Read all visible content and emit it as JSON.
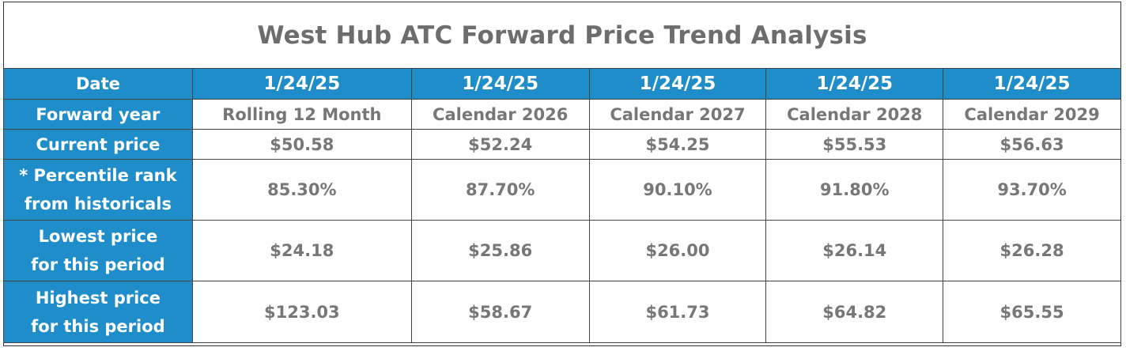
{
  "title": "West Hub ATC Forward Price Trend Analysis",
  "row_labels": {
    "date": "Date",
    "forward_year": "Forward year",
    "current_price": "Current price",
    "percentile_line1": "* Percentile rank",
    "percentile_line2": "from historicals",
    "lowest_line1": "Lowest price",
    "lowest_line2": "for this period",
    "highest_line1": "Highest price",
    "highest_line2": "for this period"
  },
  "columns": [
    {
      "date": "1/24/25",
      "forward_year": "Rolling 12 Month",
      "current_price": "$50.58",
      "percentile_rank": "85.30%",
      "lowest_price": "$24.18",
      "highest_price": "$123.03"
    },
    {
      "date": "1/24/25",
      "forward_year": "Calendar 2026",
      "current_price": "$52.24",
      "percentile_rank": "87.70%",
      "lowest_price": "$25.86",
      "highest_price": "$58.67"
    },
    {
      "date": "1/24/25",
      "forward_year": "Calendar 2027",
      "current_price": "$54.25",
      "percentile_rank": "90.10%",
      "lowest_price": "$26.00",
      "highest_price": "$61.73"
    },
    {
      "date": "1/24/25",
      "forward_year": "Calendar 2028",
      "current_price": "$55.53",
      "percentile_rank": "91.80%",
      "lowest_price": "$26.14",
      "highest_price": "$64.82"
    },
    {
      "date": "1/24/25",
      "forward_year": "Calendar 2029",
      "current_price": "$56.63",
      "percentile_rank": "93.70%",
      "lowest_price": "$26.28",
      "highest_price": "$65.55"
    }
  ],
  "colors": {
    "header_blue": "#1f8dc9",
    "title_gray": "#6d6d6d",
    "value_gray": "#777777",
    "border": "#444444"
  }
}
